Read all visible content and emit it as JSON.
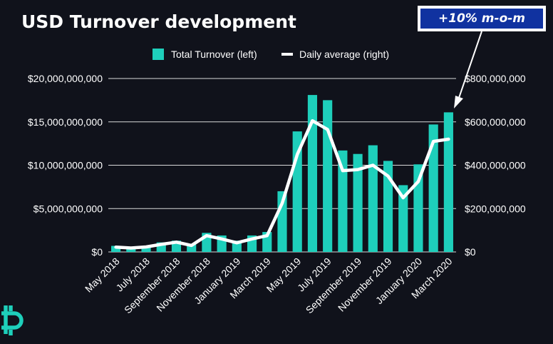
{
  "title": "USD Turnover development",
  "badge": "+10% m-o-m",
  "colors": {
    "background": "#10121b",
    "bar": "#1ecfbb",
    "line": "#ffffff",
    "badge_bg": "#1032a0",
    "grid": "#d9d9d9",
    "logo": "#1ecfbb"
  },
  "chart_data": {
    "type": "bar",
    "legend_position": "top",
    "grid": true,
    "categories": [
      "May 2018",
      "June 2018",
      "July 2018",
      "August 2018",
      "September 2018",
      "October 2018",
      "November 2018",
      "December 2018",
      "January 2019",
      "February 2019",
      "March 2019",
      "April 2019",
      "May 2019",
      "June 2019",
      "July 2019",
      "August 2019",
      "September 2019",
      "October 2019",
      "November 2019",
      "December 2019",
      "January 2020",
      "February 2020",
      "March 2020"
    ],
    "tick_labels": [
      "May 2018",
      "July 2018",
      "September 2018",
      "November 2018",
      "January 2019",
      "March 2019",
      "May 2019",
      "July 2019",
      "September 2019",
      "November 2019",
      "January 2020",
      "March 2020"
    ],
    "y_left": {
      "min": 0,
      "max": 20000000000,
      "ticks": [
        "$0",
        "$5,000,000,000",
        "$10,000,000,000",
        "$15,000,000,000",
        "$20,000,000,000"
      ]
    },
    "y_right": {
      "min": 0,
      "max": 800000000,
      "ticks": [
        "$0",
        "$200,000,000",
        "$400,000,000",
        "$600,000,000",
        "$800,000,000"
      ]
    },
    "series": [
      {
        "name": "Total Turnover (left)",
        "type": "bar",
        "axis": "left",
        "values": [
          700000000,
          500000000,
          700000000,
          1100000000,
          1300000000,
          900000000,
          2200000000,
          1900000000,
          1300000000,
          1900000000,
          2300000000,
          7000000000,
          13900000000,
          18100000000,
          17500000000,
          11700000000,
          11300000000,
          12300000000,
          10500000000,
          7700000000,
          10100000000,
          14700000000,
          16100000000
        ]
      },
      {
        "name": "Daily average (right)",
        "type": "line",
        "axis": "right",
        "values": [
          22000000,
          18000000,
          23000000,
          35000000,
          45000000,
          30000000,
          75000000,
          60000000,
          42000000,
          60000000,
          75000000,
          225000000,
          450000000,
          605000000,
          565000000,
          375000000,
          380000000,
          400000000,
          350000000,
          250000000,
          325000000,
          510000000,
          520000000
        ]
      }
    ]
  }
}
